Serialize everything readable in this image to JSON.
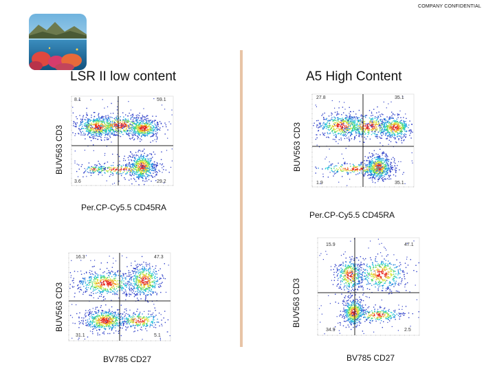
{
  "header": {
    "confidential": "COMPANY CONFIDENTIAL"
  },
  "logo": {
    "icon": "ocean-reef-logo-icon"
  },
  "panels": [
    {
      "title": "LSR II low content",
      "xlabel": "Per.CP-Cy5.5 CD45RA",
      "ylabel": "BUV563  CD3",
      "quadrants": {
        "tl": "8.1",
        "tr": "59.1",
        "bl": "3.6",
        "br": "29.2"
      }
    },
    {
      "title": "A5 High Content",
      "xlabel": "Per.CP-Cy5.5 CD45RA",
      "ylabel": "BUV563  CD3",
      "quadrants": {
        "tl": "27.8",
        "tr": "35.1",
        "bl": "1.9",
        "br": "35.1"
      }
    },
    {
      "title": "",
      "xlabel": "BV785 CD27",
      "ylabel": "BUV563  CD3",
      "quadrants": {
        "tl": "16.3",
        "tr": "47.3",
        "bl": "31.1",
        "br": "5.1"
      }
    },
    {
      "title": "",
      "xlabel": "BV785 CD27",
      "ylabel": "BUV563  CD3",
      "quadrants": {
        "tl": "15.9",
        "tr": "47.1",
        "bl": "34.9",
        "br": "2.5"
      }
    }
  ]
}
